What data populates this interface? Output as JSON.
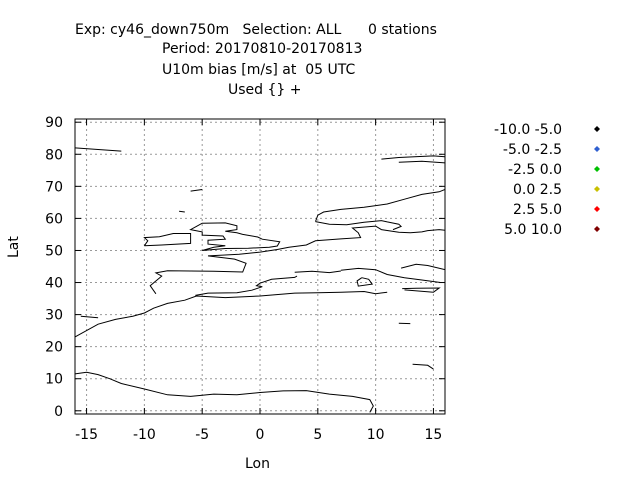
{
  "header": {
    "line1": "Exp: cy46_down750m   Selection: ALL      0 stations",
    "line2": "Period: 20170810-20170813",
    "line3": "U10m bias [m/s] at  05 UTC",
    "line4": "Used {} +"
  },
  "chart_data": {
    "type": "scatter",
    "xlabel": "Lon",
    "ylabel": "Lat",
    "xlim": [
      -16,
      16
    ],
    "ylim": [
      -1,
      91
    ],
    "x_ticks": [
      -15,
      -10,
      -5,
      0,
      5,
      10,
      15
    ],
    "x_tick_labels": [
      "-15",
      "-10",
      "-5",
      "0",
      "5",
      "10",
      "15"
    ],
    "y_ticks": [
      0,
      10,
      20,
      30,
      40,
      50,
      60,
      70,
      80,
      90
    ],
    "y_tick_labels": [
      "0",
      "10",
      "20",
      "30",
      "40",
      "50",
      "60",
      "70",
      "80",
      "90"
    ],
    "grid": true,
    "series": [
      {
        "name": "-10.0 -5.0",
        "color": "#000000",
        "values": []
      },
      {
        "name": "-5.0 -2.5",
        "color": "#3060d0",
        "values": []
      },
      {
        "name": "-2.5 0.0",
        "color": "#00c000",
        "values": []
      },
      {
        "name": "0.0 2.5",
        "color": "#c8c000",
        "values": []
      },
      {
        "name": "2.5 5.0",
        "color": "#ff0000",
        "values": []
      },
      {
        "name": "5.0 10.0",
        "color": "#800000",
        "values": []
      }
    ],
    "legend_position": "right",
    "coastlines": [
      [
        [
          -16,
          23
        ],
        [
          -14,
          27
        ],
        [
          -12.5,
          28.5
        ],
        [
          -11,
          29.5
        ],
        [
          -10,
          30.5
        ],
        [
          -9.2,
          32
        ],
        [
          -8,
          33.5
        ],
        [
          -6.5,
          34.5
        ],
        [
          -5.5,
          35.8
        ],
        [
          -3,
          35.3
        ],
        [
          0,
          35.8
        ],
        [
          3,
          36.7
        ],
        [
          5,
          36.8
        ],
        [
          7,
          37
        ],
        [
          9,
          37.2
        ],
        [
          10,
          36.5
        ],
        [
          11,
          37
        ]
      ],
      [
        [
          -15.5,
          29.5
        ],
        [
          -14,
          29
        ]
      ],
      [
        [
          -16,
          11.5
        ],
        [
          -15,
          12
        ],
        [
          -14,
          11.3
        ],
        [
          -13,
          10
        ],
        [
          -12,
          8.5
        ],
        [
          -10,
          6.8
        ],
        [
          -8,
          5
        ],
        [
          -6,
          4.5
        ],
        [
          -4,
          5.2
        ],
        [
          -2,
          5
        ],
        [
          0,
          5.7
        ],
        [
          2,
          6.2
        ],
        [
          4,
          6.3
        ],
        [
          6,
          5.2
        ],
        [
          8,
          4.5
        ],
        [
          9.5,
          3.5
        ],
        [
          9.8,
          1.5
        ],
        [
          9.5,
          -0.5
        ]
      ],
      [
        [
          -16,
          82
        ],
        [
          -14,
          81.5
        ],
        [
          -12,
          81
        ]
      ],
      [
        [
          -9,
          36.5
        ],
        [
          -9.5,
          39
        ],
        [
          -8.5,
          42
        ],
        [
          -9,
          43
        ],
        [
          -8,
          43.7
        ],
        [
          -4,
          43.5
        ],
        [
          -1.5,
          43.3
        ],
        [
          -1.2,
          46
        ],
        [
          -2.2,
          47.3
        ],
        [
          -4.5,
          48.3
        ],
        [
          -1.8,
          48.8
        ],
        [
          0,
          49.5
        ],
        [
          1.5,
          50.3
        ],
        [
          2.5,
          51
        ],
        [
          4,
          51.7
        ],
        [
          4.8,
          53
        ],
        [
          7,
          53.6
        ],
        [
          8.7,
          54
        ],
        [
          8.5,
          55.5
        ],
        [
          8,
          57
        ],
        [
          10,
          57.6
        ],
        [
          10.5,
          56.5
        ],
        [
          12,
          55.7
        ],
        [
          13,
          55.5
        ],
        [
          14,
          55.8
        ],
        [
          14.5,
          56.2
        ],
        [
          15.5,
          56.5
        ],
        [
          16,
          56.3
        ]
      ],
      [
        [
          -5,
          50
        ],
        [
          -4,
          51
        ],
        [
          -3,
          51.5
        ],
        [
          -4.5,
          52
        ],
        [
          -4.5,
          53.2
        ],
        [
          -3,
          53.5
        ],
        [
          -3.2,
          54.5
        ],
        [
          -5,
          54.8
        ],
        [
          -5,
          55.8
        ],
        [
          -6,
          56.5
        ],
        [
          -5.5,
          57.5
        ],
        [
          -5,
          58.5
        ],
        [
          -3,
          58.6
        ],
        [
          -2,
          57.7
        ],
        [
          -2,
          56.5
        ],
        [
          -3,
          56
        ],
        [
          -2,
          55.5
        ],
        [
          -1.5,
          55
        ],
        [
          -0.2,
          54.2
        ],
        [
          0.2,
          53.5
        ],
        [
          1.7,
          52.7
        ],
        [
          1.5,
          51.4
        ],
        [
          0.8,
          51
        ],
        [
          -1,
          50.7
        ],
        [
          -3,
          50.6
        ],
        [
          -5,
          50
        ]
      ],
      [
        [
          -10,
          51.5
        ],
        [
          -8.5,
          51.7
        ],
        [
          -6,
          52.2
        ],
        [
          -6,
          54
        ],
        [
          -6,
          55.3
        ],
        [
          -7.5,
          55.3
        ],
        [
          -8.7,
          54.3
        ],
        [
          -10,
          54
        ],
        [
          -9.7,
          53
        ],
        [
          -10,
          51.5
        ]
      ],
      [
        [
          -7,
          62.2
        ],
        [
          -6.5,
          62
        ]
      ],
      [
        [
          -6,
          68.5
        ],
        [
          -5,
          69
        ]
      ],
      [
        [
          4.8,
          59
        ],
        [
          5,
          61
        ],
        [
          5.5,
          62
        ],
        [
          7,
          62.8
        ],
        [
          9,
          63.5
        ],
        [
          11,
          64.5
        ],
        [
          12.5,
          66
        ],
        [
          14,
          67.5
        ],
        [
          15.5,
          68.3
        ],
        [
          16,
          69
        ]
      ],
      [
        [
          4.8,
          59
        ],
        [
          6,
          58.2
        ],
        [
          7.5,
          58
        ],
        [
          9,
          58.8
        ],
        [
          10.5,
          59.3
        ],
        [
          11,
          58.9
        ],
        [
          12,
          58.2
        ],
        [
          12.2,
          57.5
        ],
        [
          11.5,
          56.5
        ]
      ],
      [
        [
          10.5,
          78.5
        ],
        [
          12,
          79
        ],
        [
          15,
          79.5
        ],
        [
          16,
          79.2
        ]
      ],
      [
        [
          12,
          77.5
        ],
        [
          14,
          77.8
        ],
        [
          16,
          77.3
        ]
      ],
      [
        [
          8.8,
          41.5
        ],
        [
          9.4,
          41
        ],
        [
          9.7,
          39.5
        ],
        [
          8.5,
          38.9
        ],
        [
          8.4,
          40.5
        ],
        [
          8.8,
          41.5
        ]
      ],
      [
        [
          12.3,
          38.1
        ],
        [
          13.5,
          38.2
        ],
        [
          15.5,
          38.3
        ],
        [
          15,
          37
        ],
        [
          12.5,
          37.7
        ]
      ],
      [
        [
          12.2,
          44.5
        ],
        [
          13.5,
          45.7
        ],
        [
          14.5,
          45.3
        ],
        [
          16,
          44
        ]
      ],
      [
        [
          7,
          43.8
        ],
        [
          8.5,
          44.4
        ],
        [
          10,
          44
        ],
        [
          11,
          42.5
        ],
        [
          12.5,
          41.5
        ],
        [
          14,
          40.8
        ],
        [
          15.6,
          40
        ]
      ],
      [
        [
          3,
          43.2
        ],
        [
          4.5,
          43.5
        ],
        [
          6,
          43.1
        ],
        [
          7,
          43.6
        ]
      ],
      [
        [
          3.2,
          42
        ],
        [
          3,
          41.6
        ],
        [
          1,
          41
        ],
        [
          0,
          39.8
        ],
        [
          -0.3,
          39
        ],
        [
          0.2,
          38.7
        ],
        [
          -0.7,
          37.6
        ],
        [
          -2,
          36.8
        ],
        [
          -4.5,
          36.7
        ],
        [
          -5.6,
          36
        ]
      ],
      [
        [
          13.2,
          14.5
        ],
        [
          14.5,
          14.2
        ],
        [
          15,
          13
        ]
      ],
      [
        [
          12,
          27.3
        ],
        [
          13,
          27.2
        ]
      ]
    ]
  }
}
